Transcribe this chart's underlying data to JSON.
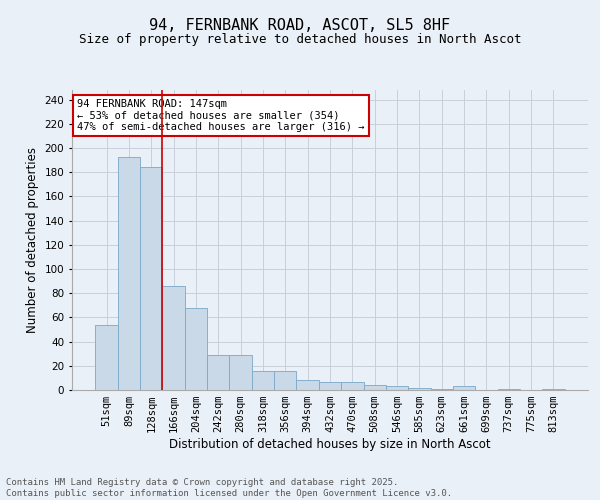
{
  "title": "94, FERNBANK ROAD, ASCOT, SL5 8HF",
  "subtitle": "Size of property relative to detached houses in North Ascot",
  "xlabel": "Distribution of detached houses by size in North Ascot",
  "ylabel": "Number of detached properties",
  "categories": [
    "51sqm",
    "89sqm",
    "128sqm",
    "166sqm",
    "204sqm",
    "242sqm",
    "280sqm",
    "318sqm",
    "356sqm",
    "394sqm",
    "432sqm",
    "470sqm",
    "508sqm",
    "546sqm",
    "585sqm",
    "623sqm",
    "661sqm",
    "699sqm",
    "737sqm",
    "775sqm",
    "813sqm"
  ],
  "values": [
    54,
    193,
    184,
    86,
    68,
    29,
    29,
    16,
    16,
    8,
    7,
    7,
    4,
    3,
    2,
    1,
    3,
    0,
    1,
    0,
    1
  ],
  "bar_color": "#c9d9e8",
  "bar_edge_color": "#7aa8c8",
  "grid_color": "#c8d0dc",
  "background_color": "#eaf0f7",
  "property_line_x": 2.5,
  "property_line_color": "#cc0000",
  "annotation_text": "94 FERNBANK ROAD: 147sqm\n← 53% of detached houses are smaller (354)\n47% of semi-detached houses are larger (316) →",
  "annotation_box_color": "#ffffff",
  "annotation_box_edge_color": "#cc0000",
  "ylim": [
    0,
    248
  ],
  "yticks": [
    0,
    20,
    40,
    60,
    80,
    100,
    120,
    140,
    160,
    180,
    200,
    220,
    240
  ],
  "footer_text": "Contains HM Land Registry data © Crown copyright and database right 2025.\nContains public sector information licensed under the Open Government Licence v3.0.",
  "title_fontsize": 11,
  "subtitle_fontsize": 9,
  "xlabel_fontsize": 8.5,
  "ylabel_fontsize": 8.5,
  "tick_fontsize": 7.5,
  "annotation_fontsize": 7.5,
  "footer_fontsize": 6.5
}
